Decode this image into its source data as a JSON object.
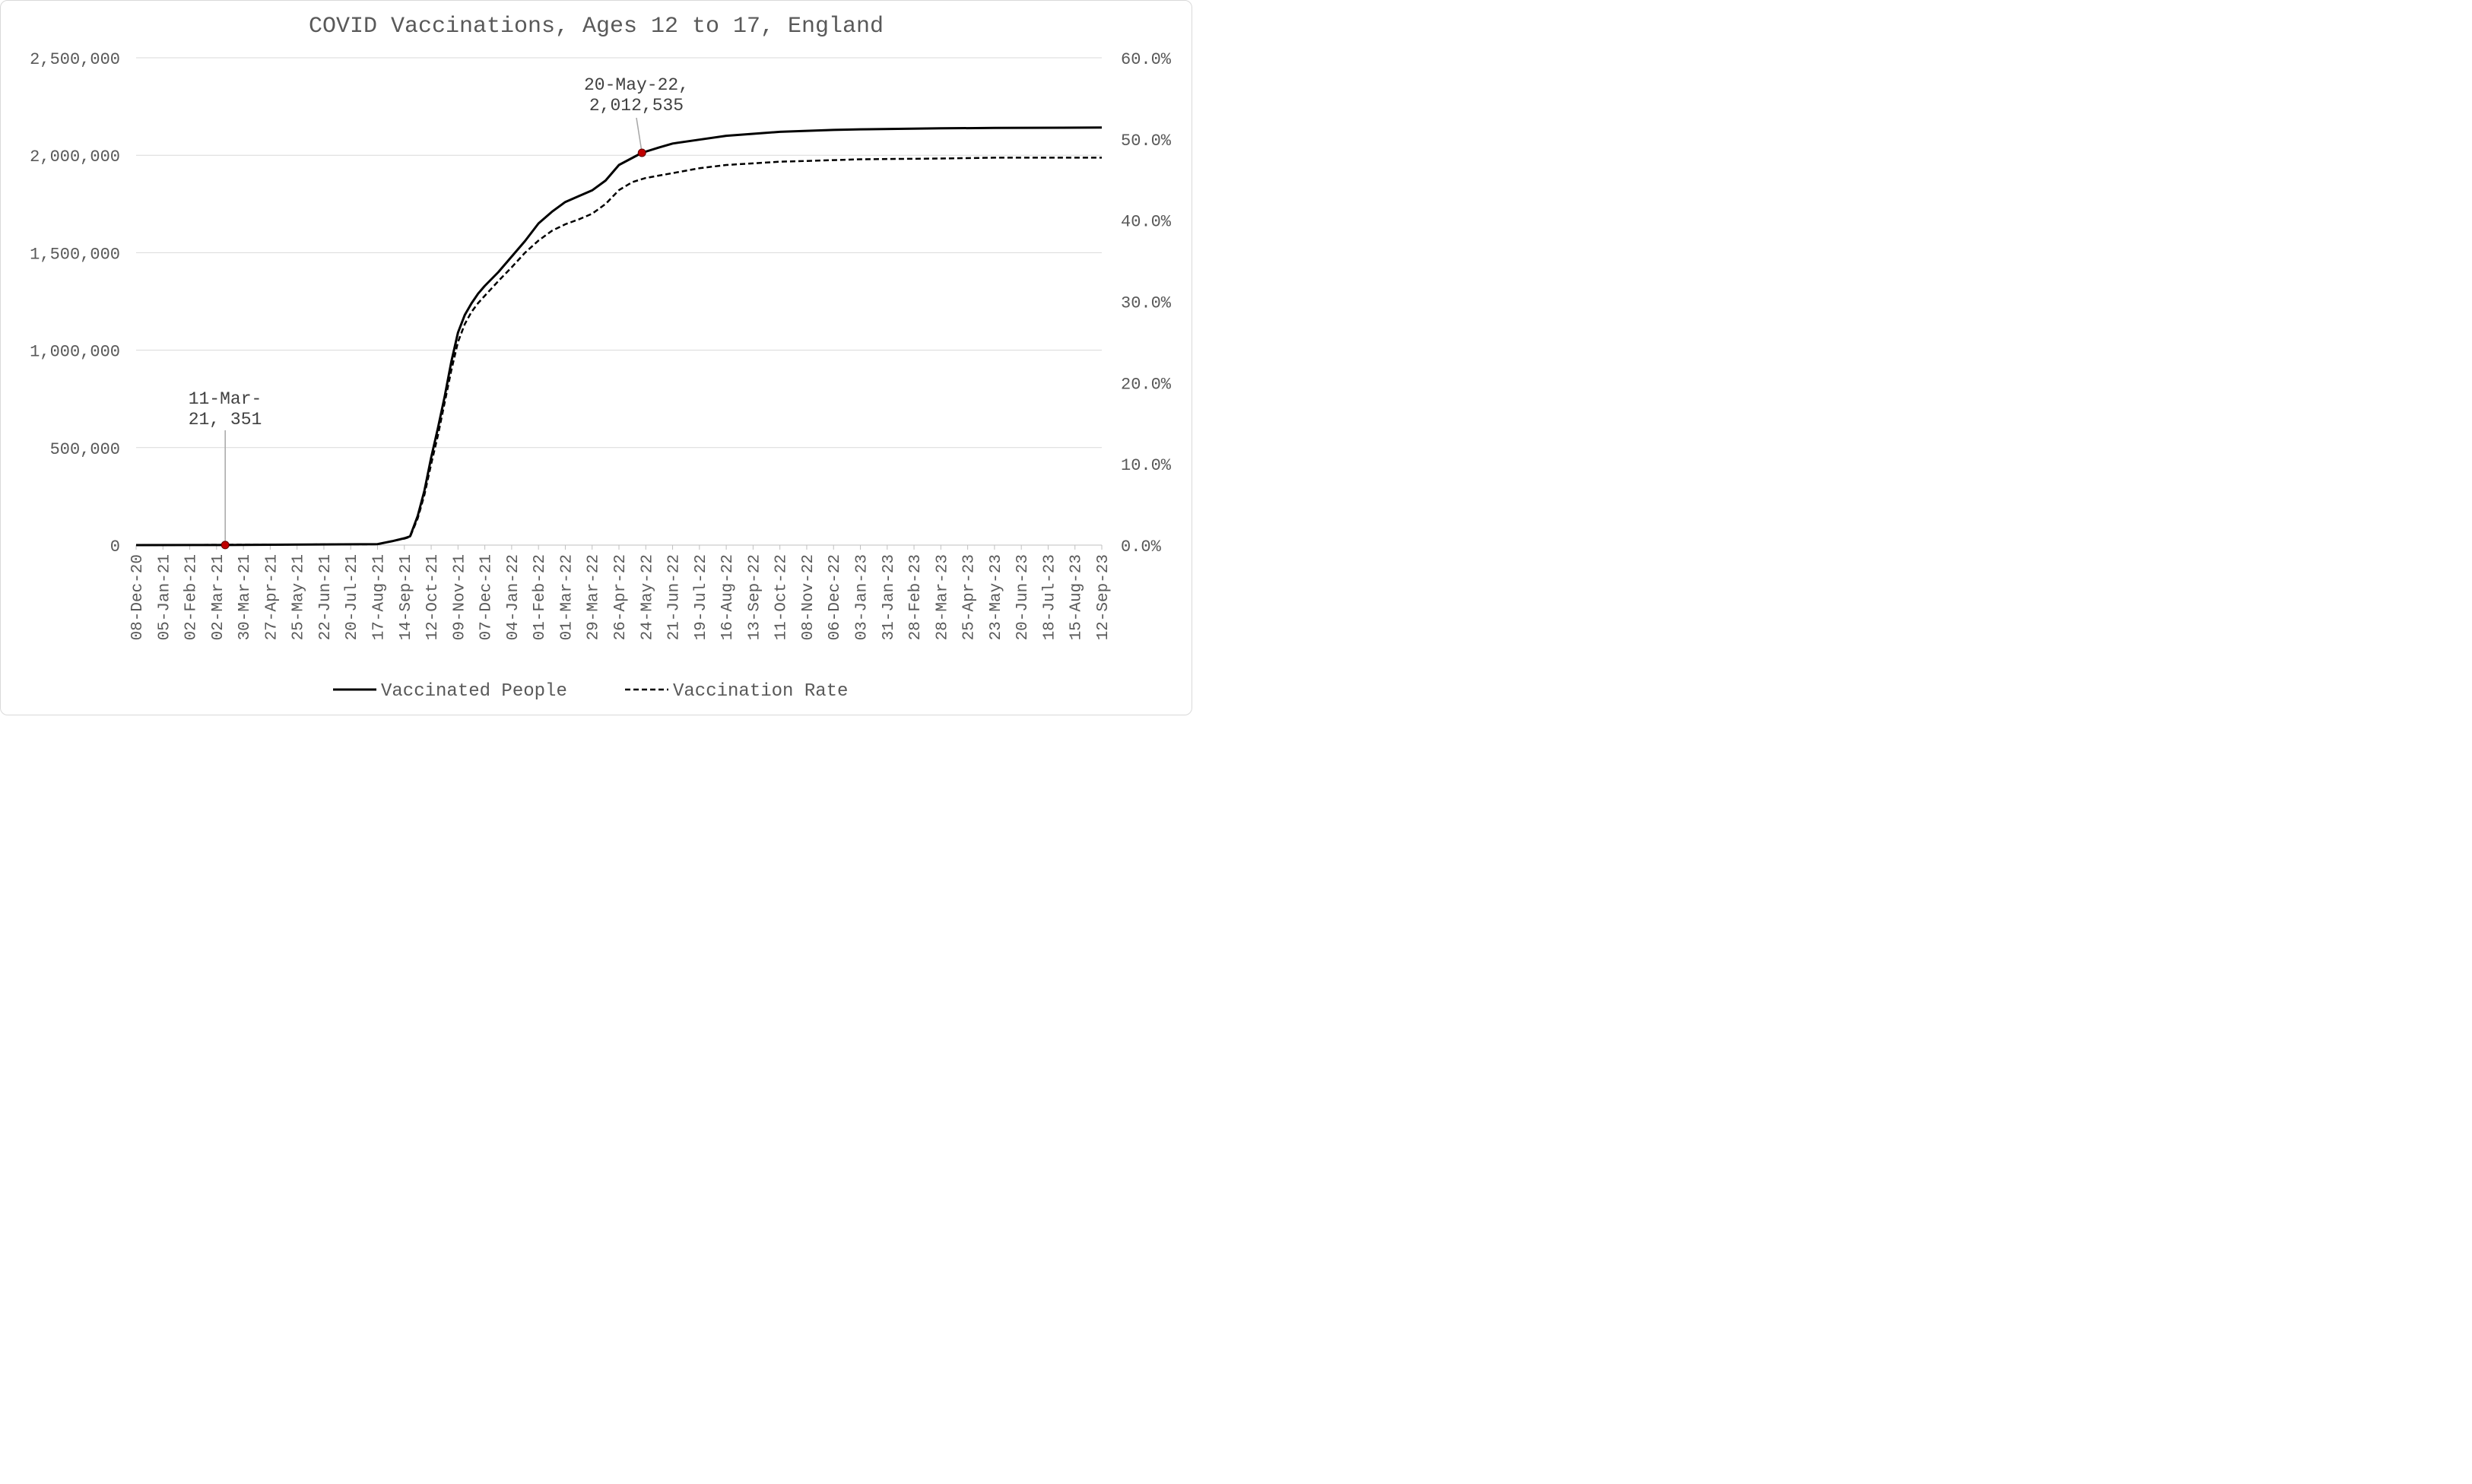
{
  "chart_data": {
    "type": "line",
    "title": "COVID Vaccinations, Ages 12 to 17, England",
    "x_is_date": true,
    "x_tick_labels": [
      "08-Dec-20",
      "05-Jan-21",
      "02-Feb-21",
      "02-Mar-21",
      "30-Mar-21",
      "27-Apr-21",
      "25-May-21",
      "22-Jun-21",
      "20-Jul-21",
      "17-Aug-21",
      "14-Sep-21",
      "12-Oct-21",
      "09-Nov-21",
      "07-Dec-21",
      "04-Jan-22",
      "01-Feb-22",
      "01-Mar-22",
      "29-Mar-22",
      "26-Apr-22",
      "24-May-22",
      "21-Jun-22",
      "19-Jul-22",
      "16-Aug-22",
      "13-Sep-22",
      "11-Oct-22",
      "08-Nov-22",
      "06-Dec-22",
      "03-Jan-23",
      "31-Jan-23",
      "28-Feb-23",
      "28-Mar-23",
      "25-Apr-23",
      "23-May-23",
      "20-Jun-23",
      "18-Jul-23",
      "15-Aug-23",
      "12-Sep-23"
    ],
    "x_range": [
      "08-Dec-20",
      "12-Sep-23"
    ],
    "y_left_ticks": [
      "0",
      "500,000",
      "1,000,000",
      "1,500,000",
      "2,000,000",
      "2,500,000"
    ],
    "y_left_range": [
      0,
      2500000
    ],
    "y_right_ticks": [
      "0.0%",
      "10.0%",
      "20.0%",
      "30.0%",
      "40.0%",
      "50.0%",
      "60.0%"
    ],
    "y_right_range": [
      0,
      0.6
    ],
    "grid": true,
    "legend_position": "bottom",
    "series": [
      {
        "name": "Vaccinated People",
        "axis": "left",
        "style": "solid",
        "color": "#000000",
        "points": [
          [
            "08-Dec-20",
            0
          ],
          [
            "11-Mar-21",
            351
          ],
          [
            "17-Aug-21",
            5000
          ],
          [
            "01-Sep-21",
            20000
          ],
          [
            "14-Sep-21",
            35000
          ],
          [
            "20-Sep-21",
            45000
          ],
          [
            "28-Sep-21",
            150000
          ],
          [
            "05-Oct-21",
            280000
          ],
          [
            "12-Oct-21",
            450000
          ],
          [
            "19-Oct-21",
            600000
          ],
          [
            "26-Oct-21",
            760000
          ],
          [
            "02-Nov-21",
            940000
          ],
          [
            "09-Nov-21",
            1090000
          ],
          [
            "16-Nov-21",
            1180000
          ],
          [
            "23-Nov-21",
            1240000
          ],
          [
            "30-Nov-21",
            1290000
          ],
          [
            "07-Dec-21",
            1330000
          ],
          [
            "21-Dec-21",
            1400000
          ],
          [
            "04-Jan-22",
            1480000
          ],
          [
            "18-Jan-22",
            1560000
          ],
          [
            "01-Feb-22",
            1650000
          ],
          [
            "15-Feb-22",
            1710000
          ],
          [
            "01-Mar-22",
            1760000
          ],
          [
            "15-Mar-22",
            1790000
          ],
          [
            "29-Mar-22",
            1820000
          ],
          [
            "12-Apr-22",
            1870000
          ],
          [
            "26-Apr-22",
            1950000
          ],
          [
            "20-May-22",
            2012535
          ],
          [
            "07-Jun-22",
            2040000
          ],
          [
            "21-Jun-22",
            2060000
          ],
          [
            "19-Jul-22",
            2080000
          ],
          [
            "16-Aug-22",
            2100000
          ],
          [
            "13-Sep-22",
            2110000
          ],
          [
            "11-Oct-22",
            2120000
          ],
          [
            "08-Nov-22",
            2125000
          ],
          [
            "06-Dec-22",
            2130000
          ],
          [
            "03-Jan-23",
            2133000
          ],
          [
            "28-Mar-23",
            2138000
          ],
          [
            "23-May-23",
            2140000
          ],
          [
            "12-Sep-23",
            2142000
          ]
        ]
      },
      {
        "name": "Vaccination Rate",
        "axis": "right",
        "style": "dashed",
        "color": "#000000",
        "points": [
          [
            "08-Dec-20",
            0.0
          ],
          [
            "17-Aug-21",
            0.001
          ],
          [
            "14-Sep-21",
            0.008
          ],
          [
            "20-Sep-21",
            0.01
          ],
          [
            "28-Sep-21",
            0.033
          ],
          [
            "05-Oct-21",
            0.062
          ],
          [
            "12-Oct-21",
            0.1
          ],
          [
            "19-Oct-21",
            0.135
          ],
          [
            "26-Oct-21",
            0.175
          ],
          [
            "02-Nov-21",
            0.215
          ],
          [
            "09-Nov-21",
            0.25
          ],
          [
            "16-Nov-21",
            0.272
          ],
          [
            "23-Nov-21",
            0.287
          ],
          [
            "30-Nov-21",
            0.298
          ],
          [
            "07-Dec-21",
            0.307
          ],
          [
            "21-Dec-21",
            0.325
          ],
          [
            "04-Jan-22",
            0.342
          ],
          [
            "18-Jan-22",
            0.36
          ],
          [
            "01-Feb-22",
            0.375
          ],
          [
            "15-Feb-22",
            0.387
          ],
          [
            "01-Mar-22",
            0.395
          ],
          [
            "15-Mar-22",
            0.401
          ],
          [
            "29-Mar-22",
            0.408
          ],
          [
            "12-Apr-22",
            0.42
          ],
          [
            "26-Apr-22",
            0.437
          ],
          [
            "10-May-22",
            0.447
          ],
          [
            "24-May-22",
            0.452
          ],
          [
            "21-Jun-22",
            0.458
          ],
          [
            "19-Jul-22",
            0.464
          ],
          [
            "16-Aug-22",
            0.468
          ],
          [
            "13-Sep-22",
            0.47
          ],
          [
            "11-Oct-22",
            0.472
          ],
          [
            "08-Nov-22",
            0.473
          ],
          [
            "06-Dec-22",
            0.474
          ],
          [
            "03-Jan-23",
            0.475
          ],
          [
            "28-Mar-23",
            0.476
          ],
          [
            "23-May-23",
            0.477
          ],
          [
            "12-Sep-23",
            0.477
          ]
        ]
      }
    ],
    "annotations": [
      {
        "date": "11-Mar-21",
        "value": 351,
        "lines": [
          "11-Mar-",
          "21, 351"
        ],
        "marker_color": "#c00000"
      },
      {
        "date": "20-May-22",
        "value": 2012535,
        "lines": [
          "20-May-22,",
          "2,012,535"
        ],
        "marker_color": "#c00000"
      }
    ]
  }
}
